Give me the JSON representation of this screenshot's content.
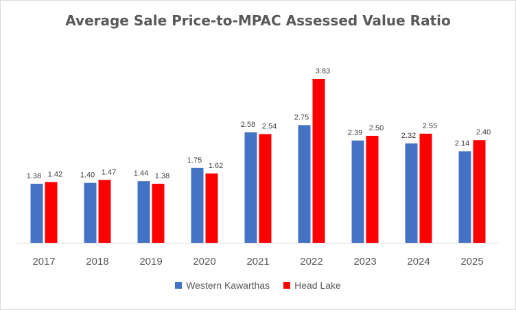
{
  "chart_data": {
    "type": "bar",
    "title": "Average Sale Price-to-MPAC Assessed Value Ratio",
    "xlabel": "",
    "ylabel": "",
    "categories": [
      "2017",
      "2018",
      "2019",
      "2020",
      "2021",
      "2022",
      "2023",
      "2024",
      "2025"
    ],
    "series": [
      {
        "name": "Western Kawarthas",
        "color": "#4472c4",
        "values": [
          1.38,
          1.4,
          1.44,
          1.75,
          2.58,
          2.75,
          2.39,
          2.32,
          2.14
        ]
      },
      {
        "name": "Head Lake",
        "color": "#ff0000",
        "values": [
          1.42,
          1.47,
          1.38,
          1.62,
          2.54,
          3.83,
          2.5,
          2.55,
          2.4
        ]
      }
    ],
    "data_labels": [
      [
        "1.38",
        "1.40",
        "1.44",
        "1.75",
        "2.58",
        "2.75",
        "2.39",
        "2.32",
        "2.14"
      ],
      [
        "1.42",
        "1.47",
        "1.38",
        "1.62",
        "2.54",
        "3.83",
        "2.50",
        "2.55",
        "2.40"
      ]
    ],
    "ylim": [
      0,
      3.83
    ],
    "grid": false,
    "legend_position": "bottom"
  }
}
